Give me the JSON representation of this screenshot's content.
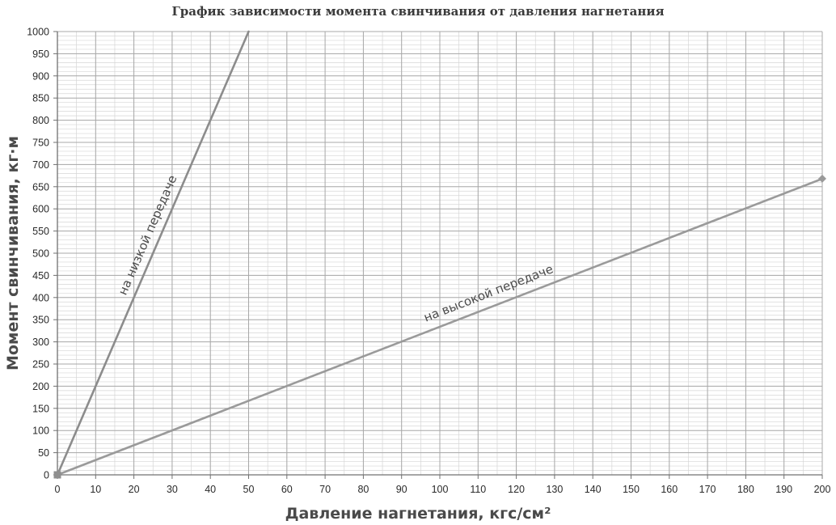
{
  "chart_data": {
    "type": "line",
    "title": "График зависимости момента свинчивания от давления нагнетания",
    "xlabel": "Давление нагнетания, кгс/см²",
    "ylabel": "Момент свинчивания, кг·м",
    "xlim": [
      0,
      200
    ],
    "ylim": [
      0,
      1000
    ],
    "x_ticks": [
      0,
      10,
      20,
      30,
      40,
      50,
      60,
      70,
      80,
      90,
      100,
      110,
      120,
      130,
      140,
      150,
      160,
      170,
      180,
      190,
      200
    ],
    "y_ticks": [
      0,
      50,
      100,
      150,
      200,
      250,
      300,
      350,
      400,
      450,
      500,
      550,
      600,
      650,
      700,
      750,
      800,
      850,
      900,
      950,
      1000
    ],
    "grid": true,
    "minor_grid": true,
    "series": [
      {
        "label": "на низкой передаче",
        "x": [
          0,
          50
        ],
        "y": [
          0,
          1000
        ],
        "color": "#8c8c8c"
      },
      {
        "label": "на высокой передаче",
        "x": [
          0,
          200
        ],
        "y": [
          0,
          668
        ],
        "color": "#9a9a9a"
      }
    ],
    "annotations": [
      {
        "text": "на низкой передаче",
        "series": 0
      },
      {
        "text": "на высокой передаче",
        "series": 1
      }
    ]
  }
}
